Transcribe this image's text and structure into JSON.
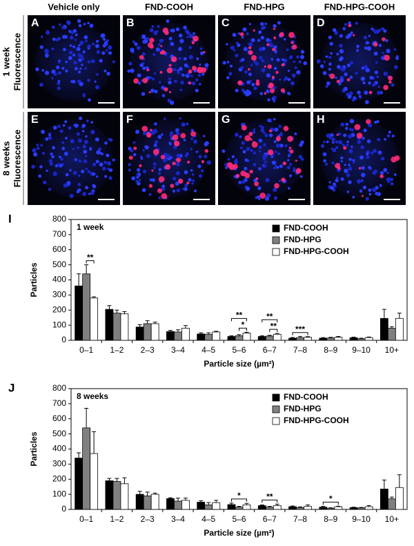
{
  "figure": {
    "column_headers": [
      "Vehicle only",
      "FND-COOH",
      "FND-HPG",
      "FND-HPG-COOH"
    ],
    "rows": [
      {
        "period": "1 week",
        "method": "Fluorescence"
      },
      {
        "period": "8 weeks",
        "method": "Fluorescence"
      }
    ],
    "panels": [
      "A",
      "B",
      "C",
      "D",
      "E",
      "F",
      "G",
      "H"
    ]
  },
  "chart_data": [
    {
      "type": "bar",
      "panel_label": "I",
      "title": "1 week",
      "categories": [
        "0–1",
        "1–2",
        "2–3",
        "3–4",
        "4–5",
        "5–6",
        "6–7",
        "7–8",
        "8–9",
        "9–10",
        "10+"
      ],
      "series": [
        {
          "name": "FND-COOH",
          "color": "#000000",
          "values": [
            360,
            205,
            88,
            58,
            42,
            25,
            25,
            14,
            14,
            17,
            145
          ],
          "errors": [
            80,
            25,
            15,
            8,
            8,
            5,
            5,
            5,
            4,
            4,
            60
          ]
        },
        {
          "name": "FND-HPG",
          "color": "#808080",
          "values": [
            440,
            180,
            110,
            55,
            40,
            30,
            28,
            18,
            15,
            10,
            80
          ],
          "errors": [
            60,
            20,
            20,
            15,
            10,
            8,
            5,
            8,
            5,
            4,
            10
          ]
        },
        {
          "name": "FND-HPG-COOH",
          "color": "#ffffff",
          "values": [
            280,
            175,
            110,
            80,
            55,
            48,
            40,
            20,
            20,
            18,
            145
          ],
          "errors": [
            8,
            15,
            10,
            18,
            5,
            5,
            5,
            4,
            5,
            4,
            35
          ]
        }
      ],
      "ylim": [
        0,
        800
      ],
      "yticks": [
        0,
        100,
        200,
        300,
        400,
        500,
        600,
        700,
        800
      ],
      "ylabel": "Particles",
      "xlabel": "Particle size (µm²)",
      "annotations": [
        {
          "text": "**",
          "category": "0–1",
          "series": [
            "FND-HPG",
            "FND-HPG-COOH"
          ]
        },
        {
          "text": "*",
          "category": "5–6",
          "series": [
            "FND-HPG",
            "FND-HPG-COOH"
          ]
        },
        {
          "text": "**",
          "category": "5–6",
          "series": [
            "FND-COOH",
            "FND-HPG-COOH"
          ]
        },
        {
          "text": "**",
          "category": "6–7",
          "series": [
            "FND-HPG",
            "FND-HPG-COOH"
          ]
        },
        {
          "text": "**",
          "category": "6–7",
          "series": [
            "FND-COOH",
            "FND-HPG-COOH"
          ]
        },
        {
          "text": "***",
          "category": "7–8",
          "series": [
            "FND-COOH",
            "FND-HPG-COOH"
          ]
        }
      ]
    },
    {
      "type": "bar",
      "panel_label": "J",
      "title": "8 weeks",
      "categories": [
        "0–1",
        "1–2",
        "2–3",
        "3–4",
        "4–5",
        "5–6",
        "6–7",
        "7–8",
        "8–9",
        "9–10",
        "10+"
      ],
      "series": [
        {
          "name": "FND-COOH",
          "color": "#000000",
          "values": [
            340,
            190,
            100,
            72,
            48,
            32,
            25,
            18,
            15,
            12,
            135
          ],
          "errors": [
            35,
            15,
            20,
            5,
            10,
            10,
            5,
            5,
            5,
            3,
            60
          ]
        },
        {
          "name": "FND-HPG",
          "color": "#808080",
          "values": [
            540,
            185,
            90,
            55,
            30,
            15,
            15,
            12,
            8,
            10,
            70
          ],
          "errors": [
            130,
            20,
            25,
            20,
            15,
            5,
            5,
            5,
            3,
            3,
            12
          ]
        },
        {
          "name": "FND-HPG-COOH",
          "color": "#ffffff",
          "values": [
            370,
            170,
            100,
            60,
            45,
            30,
            25,
            20,
            18,
            18,
            145
          ],
          "errors": [
            145,
            40,
            8,
            15,
            15,
            10,
            10,
            10,
            3,
            8,
            85
          ]
        }
      ],
      "ylim": [
        0,
        800
      ],
      "yticks": [
        0,
        100,
        200,
        300,
        400,
        500,
        600,
        700,
        800
      ],
      "ylabel": "Particles",
      "xlabel": "Particle size (µm²)",
      "annotations": [
        {
          "text": "*",
          "category": "5–6",
          "series": [
            "FND-COOH",
            "FND-HPG-COOH"
          ]
        },
        {
          "text": "**",
          "category": "6–7",
          "series": [
            "FND-COOH",
            "FND-HPG-COOH"
          ]
        },
        {
          "text": "*",
          "category": "8–9",
          "series": [
            "FND-COOH",
            "FND-HPG-COOH"
          ]
        }
      ]
    }
  ]
}
